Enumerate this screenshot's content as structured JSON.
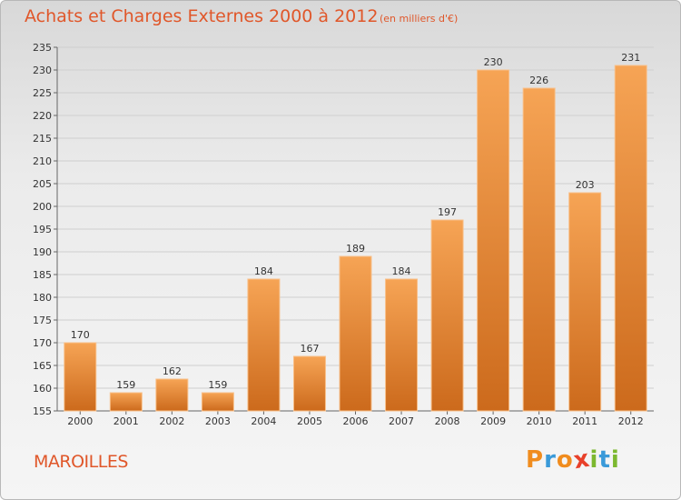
{
  "title": "Achats et Charges Externes 2000 à 2012",
  "subtitle": "(en milliers d'€)",
  "commune": "MAROILLES",
  "logo": {
    "letters": [
      "P",
      "r",
      "o",
      "x",
      "i",
      "t",
      "i"
    ],
    "colors": [
      "#f08c1e",
      "#3a9ad9",
      "#f08c1e",
      "#e8402a",
      "#7cb82f",
      "#3a9ad9",
      "#7cb82f"
    ]
  },
  "colors": {
    "bar_top": "#f6a455",
    "bar_bottom": "#cc6a1c",
    "title": "#e0572a"
  },
  "chart_data": {
    "type": "bar",
    "categories": [
      "2000",
      "2001",
      "2002",
      "2003",
      "2004",
      "2005",
      "2006",
      "2007",
      "2008",
      "2009",
      "2010",
      "2011",
      "2012"
    ],
    "values": [
      170,
      159,
      162,
      159,
      184,
      167,
      189,
      184,
      197,
      230,
      226,
      203,
      231
    ],
    "title": "Achats et Charges Externes 2000 à 2012",
    "subtitle": "(en milliers d'€)",
    "ylim": [
      155,
      235
    ],
    "yticks": [
      155,
      160,
      165,
      170,
      175,
      180,
      185,
      190,
      195,
      200,
      205,
      210,
      215,
      220,
      225,
      230,
      235
    ],
    "grid": true,
    "legend": "none"
  }
}
